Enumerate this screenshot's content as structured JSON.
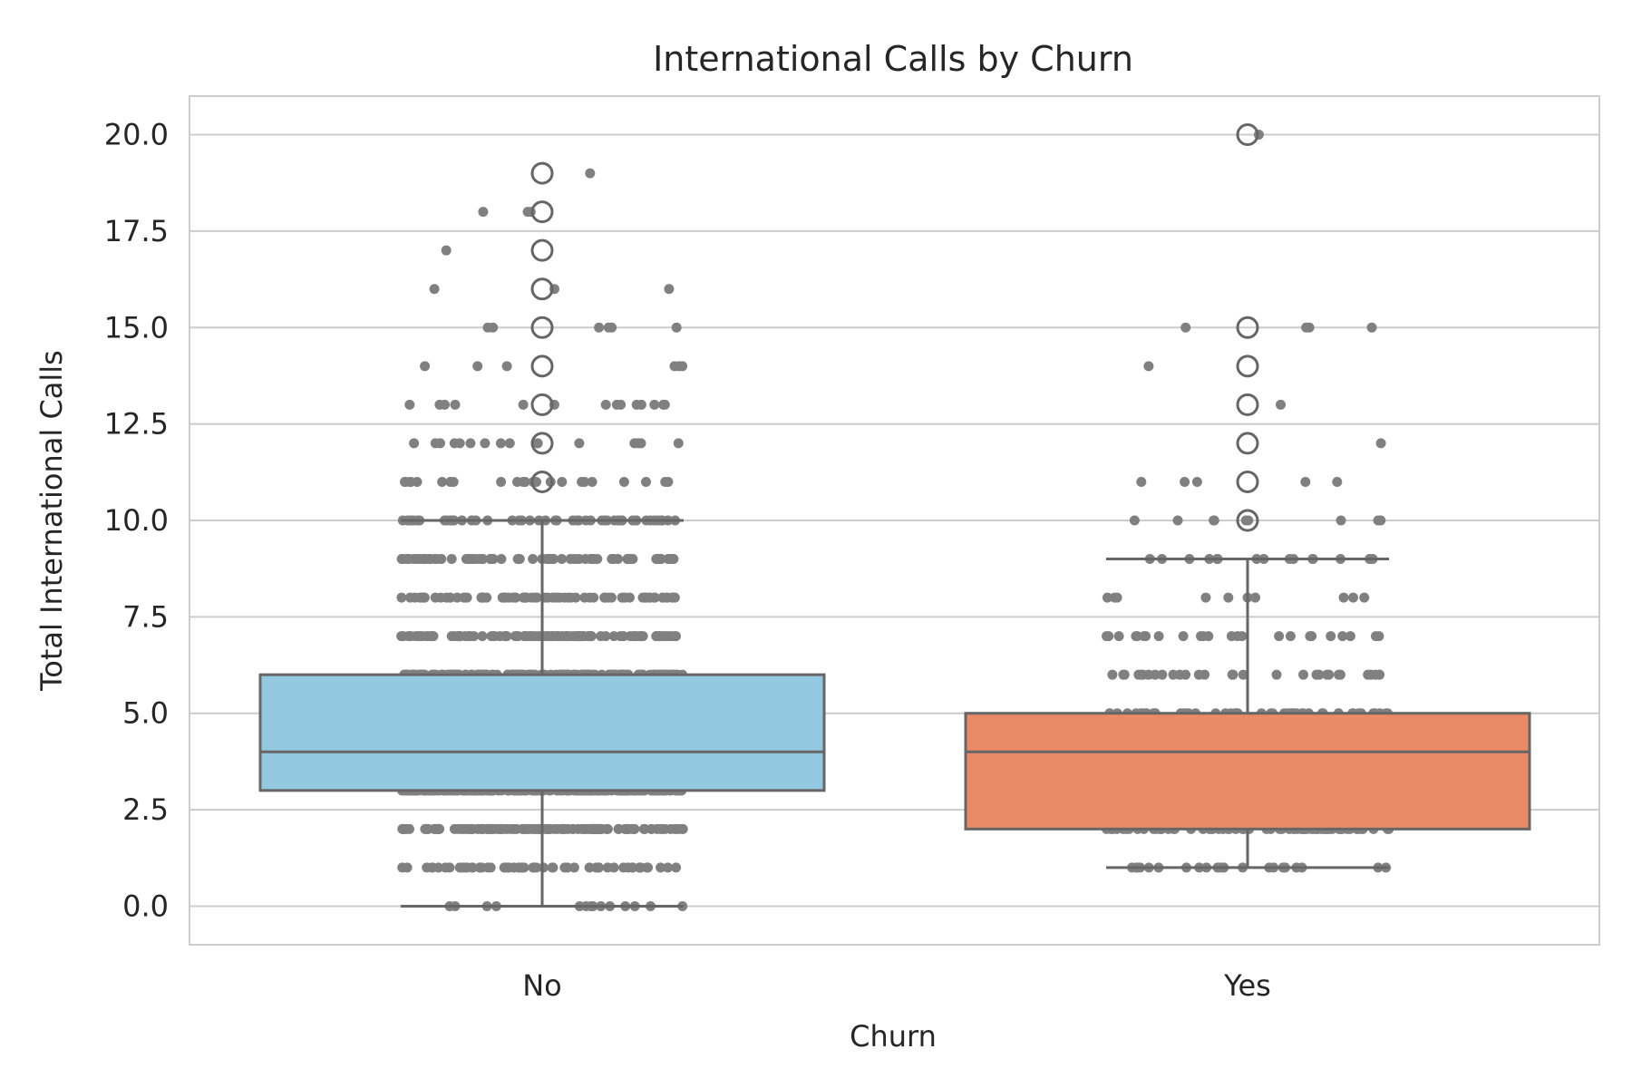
{
  "chart_data": {
    "type": "box",
    "title": "International Calls by Churn",
    "xlabel": "Churn",
    "ylabel": "Total International Calls",
    "categories": [
      "No",
      "Yes"
    ],
    "ylim": [
      -1,
      21
    ],
    "yticks": [
      0.0,
      2.5,
      5.0,
      7.5,
      10.0,
      12.5,
      15.0,
      17.5,
      20.0
    ],
    "ytick_labels": [
      "0.0",
      "2.5",
      "5.0",
      "7.5",
      "10.0",
      "12.5",
      "15.0",
      "17.5",
      "20.0"
    ],
    "grid": "horizontal",
    "boxes": [
      {
        "category": "No",
        "color": "#92c9e0",
        "min": 0,
        "q1": 3,
        "median": 4,
        "q3": 6,
        "max": 10,
        "outliers": [
          11,
          12,
          13,
          14,
          15,
          16,
          17,
          18,
          19
        ]
      },
      {
        "category": "Yes",
        "color": "#eb8a66",
        "min": 1,
        "q1": 2,
        "median": 4,
        "q3": 5,
        "max": 9,
        "outliers": [
          10,
          11,
          12,
          13,
          14,
          15,
          20
        ]
      }
    ],
    "strip_points": [
      {
        "category": "No",
        "values": [
          {
            "y": 0,
            "n": 14
          },
          {
            "y": 1,
            "n": 60
          },
          {
            "y": 2,
            "n": 130
          },
          {
            "y": 3,
            "n": 190
          },
          {
            "y": 4,
            "n": 200
          },
          {
            "y": 5,
            "n": 190
          },
          {
            "y": 6,
            "n": 150
          },
          {
            "y": 7,
            "n": 110
          },
          {
            "y": 8,
            "n": 80
          },
          {
            "y": 9,
            "n": 70
          },
          {
            "y": 10,
            "n": 55
          },
          {
            "y": 11,
            "n": 24
          },
          {
            "y": 12,
            "n": 16
          },
          {
            "y": 13,
            "n": 14
          },
          {
            "y": 14,
            "n": 6
          },
          {
            "y": 15,
            "n": 6
          },
          {
            "y": 16,
            "n": 3
          },
          {
            "y": 17,
            "n": 1
          },
          {
            "y": 18,
            "n": 3
          },
          {
            "y": 19,
            "n": 1
          }
        ]
      },
      {
        "category": "Yes",
        "values": [
          {
            "y": 1,
            "n": 22
          },
          {
            "y": 2,
            "n": 70
          },
          {
            "y": 3,
            "n": 75
          },
          {
            "y": 4,
            "n": 70
          },
          {
            "y": 5,
            "n": 50
          },
          {
            "y": 6,
            "n": 30
          },
          {
            "y": 7,
            "n": 24
          },
          {
            "y": 8,
            "n": 10
          },
          {
            "y": 9,
            "n": 16
          },
          {
            "y": 10,
            "n": 9
          },
          {
            "y": 11,
            "n": 5
          },
          {
            "y": 12,
            "n": 1
          },
          {
            "y": 13,
            "n": 1
          },
          {
            "y": 14,
            "n": 1
          },
          {
            "y": 15,
            "n": 4
          },
          {
            "y": 20,
            "n": 1
          }
        ]
      }
    ],
    "colors": {
      "points": "#808080",
      "box_edge": "#666666",
      "grid": "#cccccc",
      "text": "#262626"
    }
  }
}
